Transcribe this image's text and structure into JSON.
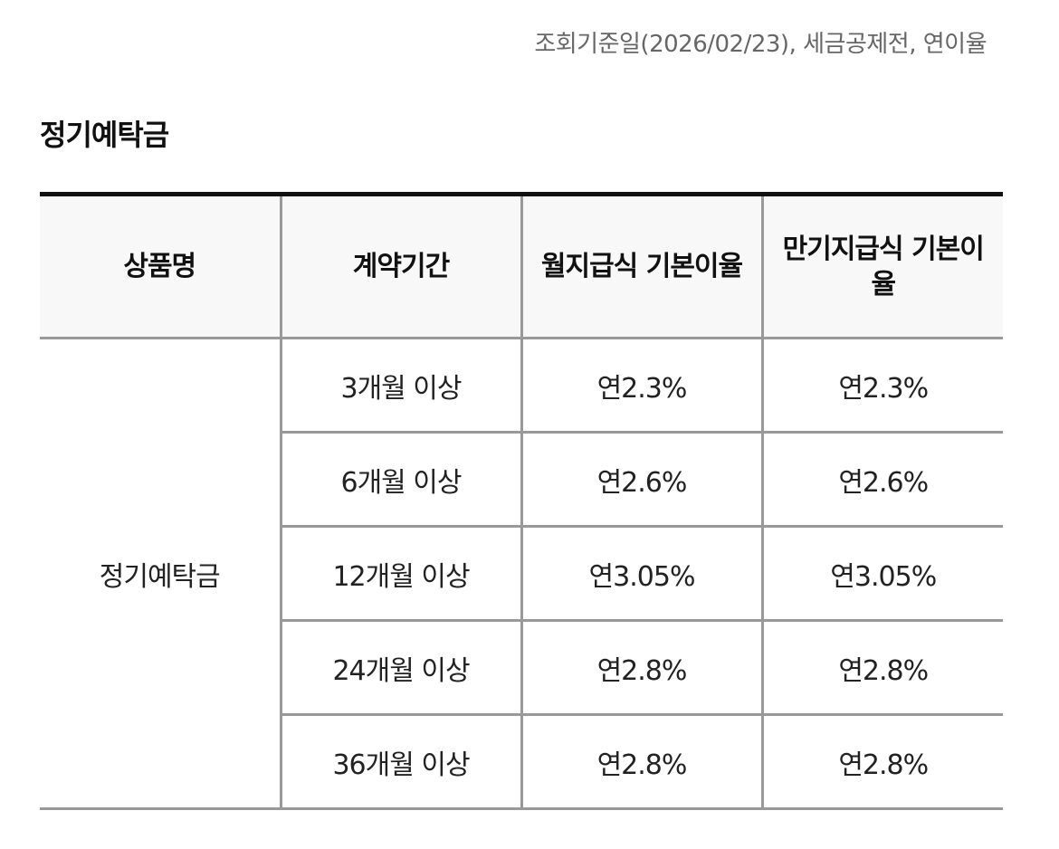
{
  "reference_note": "조회기준일(2026/02/23), 세금공제전, 연이율",
  "section_title": "정기예탁금",
  "table": {
    "headers": [
      "상품명",
      "계약기간",
      "월지급식 기본이율",
      "만기지급식 기본이율"
    ],
    "product_name": "정기예탁금",
    "rows": [
      {
        "period": "3개월 이상",
        "monthly_rate": "연2.3%",
        "maturity_rate": "연2.3%"
      },
      {
        "period": "6개월 이상",
        "monthly_rate": "연2.6%",
        "maturity_rate": "연2.6%"
      },
      {
        "period": "12개월 이상",
        "monthly_rate": "연3.05%",
        "maturity_rate": "연3.05%"
      },
      {
        "period": "24개월 이상",
        "monthly_rate": "연2.8%",
        "maturity_rate": "연2.8%"
      },
      {
        "period": "36개월 이상",
        "monthly_rate": "연2.8%",
        "maturity_rate": "연2.8%"
      }
    ]
  }
}
